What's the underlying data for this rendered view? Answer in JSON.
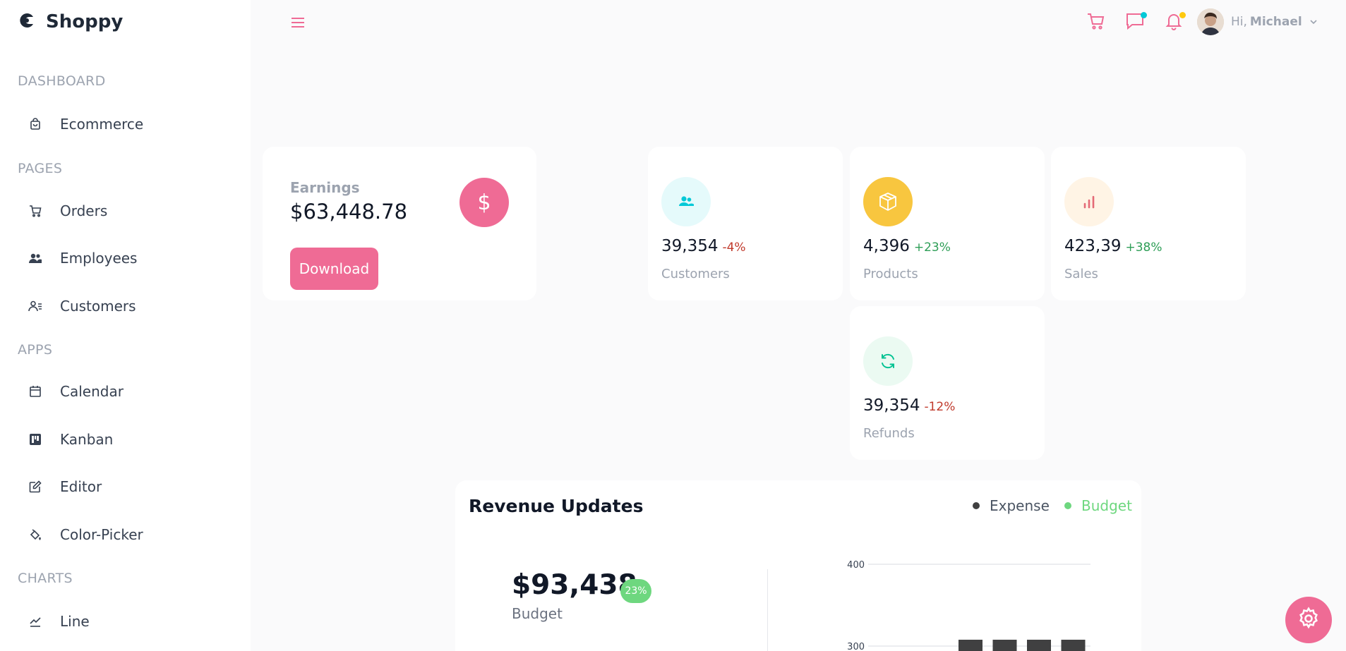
{
  "brand": {
    "name": "Shoppy",
    "logo_icon": "shoppy-logo-icon"
  },
  "sidebar": {
    "sections": [
      {
        "title": "DASHBOARD",
        "items": [
          {
            "label": "Ecommerce",
            "icon": "shopping-bag-icon"
          }
        ]
      },
      {
        "title": "PAGES",
        "items": [
          {
            "label": "Orders",
            "icon": "cart-icon"
          },
          {
            "label": "Employees",
            "icon": "employees-icon"
          },
          {
            "label": "Customers",
            "icon": "customers-icon"
          }
        ]
      },
      {
        "title": "APPS",
        "items": [
          {
            "label": "Calendar",
            "icon": "calendar-icon"
          },
          {
            "label": "Kanban",
            "icon": "kanban-icon"
          },
          {
            "label": "Editor",
            "icon": "edit-icon"
          },
          {
            "label": "Color-Picker",
            "icon": "paint-bucket-icon"
          }
        ]
      },
      {
        "title": "CHARTS",
        "items": [
          {
            "label": "Line",
            "icon": "line-chart-icon"
          }
        ]
      }
    ]
  },
  "topbar": {
    "menu_icon": "hamburger-icon",
    "greeting": "Hi,",
    "user_name": "Michael",
    "notification_dot_colors": {
      "chat": "#03c9d7",
      "bell": "#fec90f"
    }
  },
  "earnings": {
    "title": "Earnings",
    "value": "$63,448.78",
    "icon_symbol": "$",
    "button_label": "Download"
  },
  "stats": [
    {
      "amount": "39,354",
      "percentage": "-4%",
      "label": "Customers",
      "trend": "down",
      "icon": "users-icon",
      "icon_bg": "#e5fafb",
      "icon_color": "#03c9d7"
    },
    {
      "amount": "4,396",
      "percentage": "+23%",
      "label": "Products",
      "trend": "up",
      "icon": "box-icon",
      "icon_bg": "#f8c63f",
      "icon_color": "#ffffff"
    },
    {
      "amount": "423,39",
      "percentage": "+38%",
      "label": "Sales",
      "trend": "up",
      "icon": "bar-chart-icon",
      "icon_bg": "#fff4e5",
      "icon_color": "#e46a76"
    },
    {
      "amount": "39,354",
      "percentage": "-12%",
      "label": "Refunds",
      "trend": "down",
      "icon": "refresh-icon",
      "icon_bg": "#ebfaf2",
      "icon_color": "#00c292"
    }
  ],
  "revenue": {
    "title": "Revenue Updates",
    "legend": [
      {
        "label": "Expense",
        "color": "#404041"
      },
      {
        "label": "Budget",
        "color": "#6ed77f"
      }
    ],
    "budget_value": "$93,438",
    "budget_badge": "23%",
    "budget_label": "Budget"
  },
  "chart_data": {
    "type": "bar",
    "y_ticks": [
      "400",
      "300"
    ],
    "ylim_visible": [
      300,
      400
    ],
    "bar_count_visible": 4,
    "series": [
      {
        "name": "Expense",
        "color": "#404041"
      }
    ]
  },
  "colors": {
    "accent": "#ef6b95",
    "down": "#c0392b",
    "up": "#2e9e57"
  },
  "settings_icon": "gear-icon"
}
